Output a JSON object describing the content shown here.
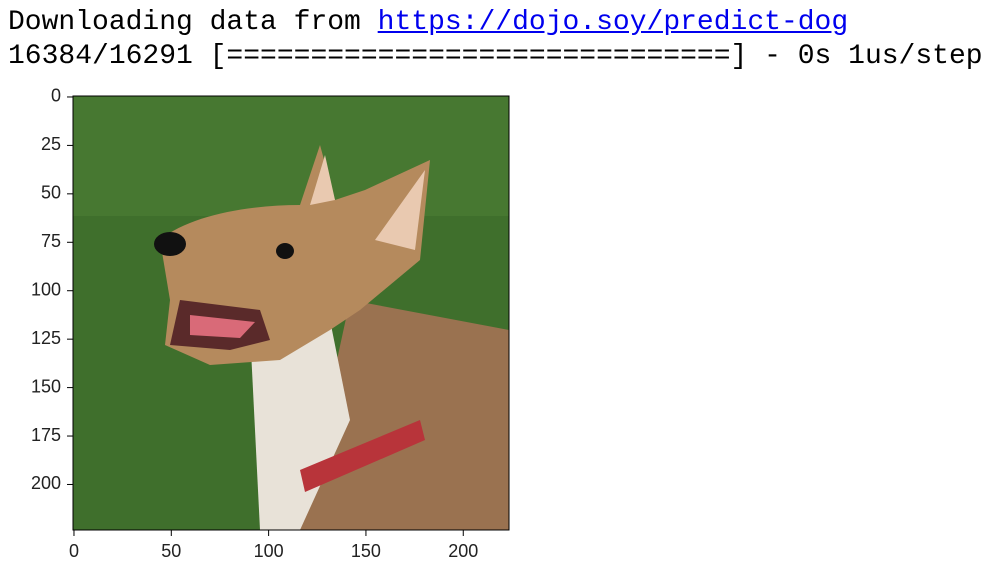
{
  "output": {
    "prefix": "Downloading data from ",
    "link": "https://dojo.soy/predict-dog",
    "progress": "16384/16291 [==============================] - 0s 1us/step"
  },
  "chart_data": {
    "type": "image",
    "xlim": [
      -0.5,
      223.5
    ],
    "ylim": [
      223.5,
      -0.5
    ],
    "xticks": [
      0,
      50,
      100,
      150,
      200
    ],
    "yticks": [
      0,
      25,
      50,
      75,
      100,
      125,
      150,
      175,
      200
    ]
  }
}
